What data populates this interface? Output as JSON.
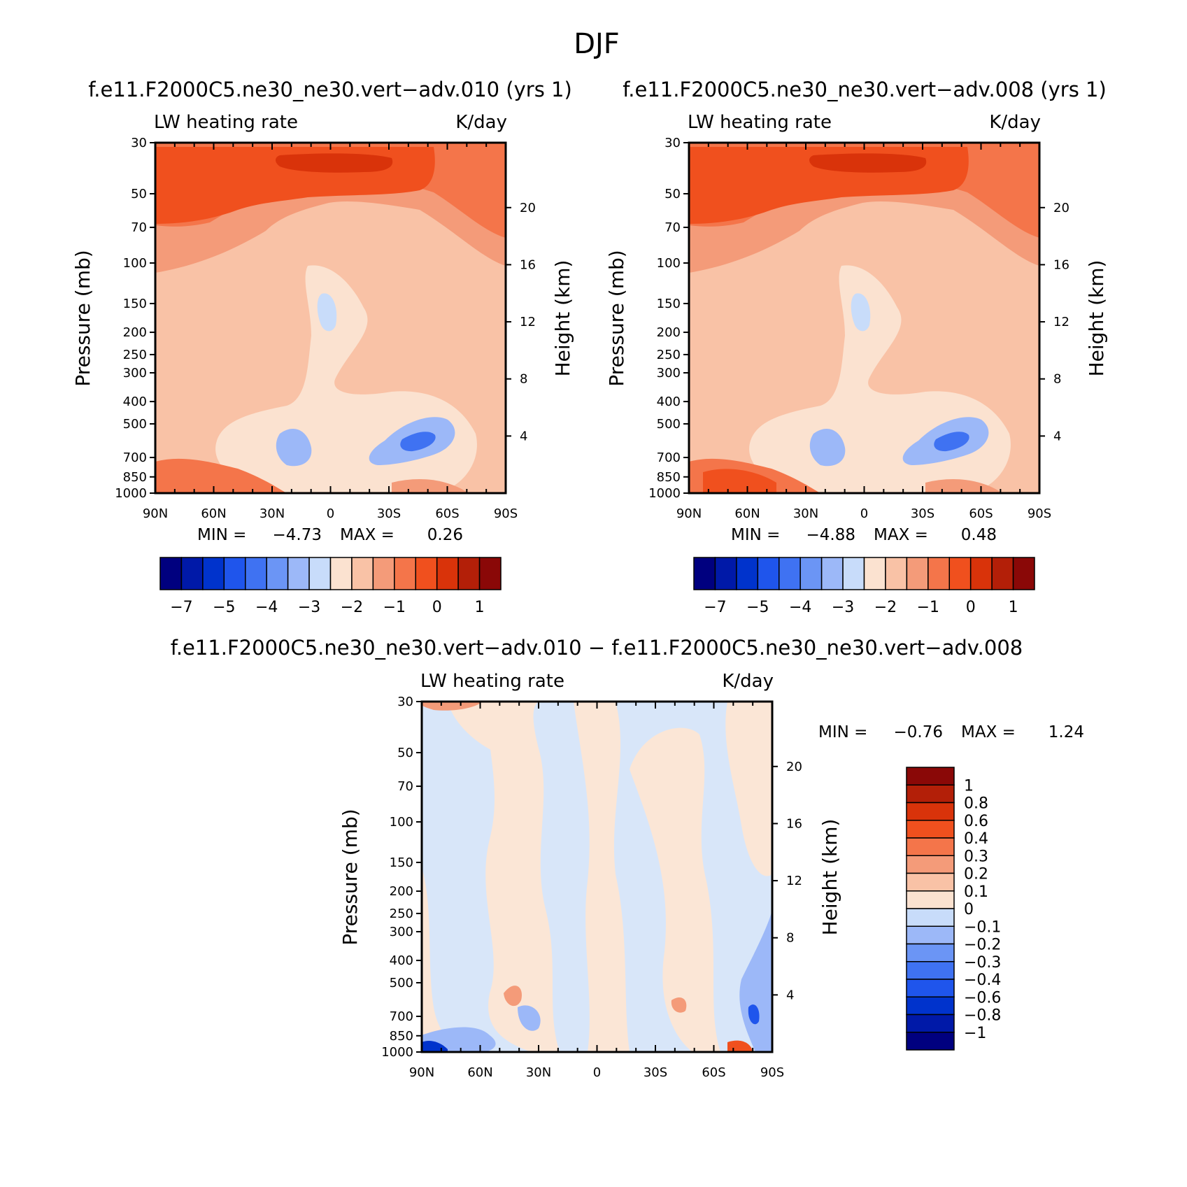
{
  "figure_title": "DJF",
  "chart_data": [
    {
      "id": "panel-left",
      "type": "contour",
      "title": "f.e11.F2000C5.ne30_ne30.vert−adv.010 (yrs 1)",
      "variable": "LW heating rate",
      "units": "K/day",
      "xlabel": "",
      "ylabel": "Pressure (mb)",
      "ylabel_right": "Height (km)",
      "x_tick_labels": [
        "90N",
        "60N",
        "30N",
        "0",
        "30S",
        "60S",
        "90S"
      ],
      "x_tick_values": [
        90,
        60,
        30,
        0,
        -30,
        -60,
        -90
      ],
      "y_tick_labels": [
        "30",
        "50",
        "70",
        "100",
        "150",
        "200",
        "250",
        "300",
        "400",
        "500",
        "700",
        "850",
        "1000"
      ],
      "y_tick_values": [
        30,
        50,
        70,
        100,
        150,
        200,
        250,
        300,
        400,
        500,
        700,
        850,
        1000
      ],
      "height_tick_labels": [
        "20",
        "16",
        "12",
        "8",
        "4"
      ],
      "height_tick_values": [
        20,
        16,
        12,
        8,
        4
      ],
      "ylim": [
        30,
        1000
      ],
      "xlim": [
        90,
        -90
      ],
      "min_label": "MIN =",
      "min_value": "−4.73",
      "max_label": "MAX =",
      "max_value": "0.26",
      "colorbar_orientation": "horizontal",
      "colorbar_labels": [
        "−7",
        "−5",
        "−4",
        "−3",
        "−2",
        "−1",
        "0",
        "1"
      ]
    },
    {
      "id": "panel-right",
      "type": "contour",
      "title": "f.e11.F2000C5.ne30_ne30.vert−adv.008 (yrs 1)",
      "variable": "LW heating rate",
      "units": "K/day",
      "xlabel": "",
      "ylabel": "Pressure (mb)",
      "ylabel_right": "Height (km)",
      "x_tick_labels": [
        "90N",
        "60N",
        "30N",
        "0",
        "30S",
        "60S",
        "90S"
      ],
      "x_tick_values": [
        90,
        60,
        30,
        0,
        -30,
        -60,
        -90
      ],
      "y_tick_labels": [
        "30",
        "50",
        "70",
        "100",
        "150",
        "200",
        "250",
        "300",
        "400",
        "500",
        "700",
        "850",
        "1000"
      ],
      "y_tick_values": [
        30,
        50,
        70,
        100,
        150,
        200,
        250,
        300,
        400,
        500,
        700,
        850,
        1000
      ],
      "height_tick_labels": [
        "20",
        "16",
        "12",
        "8",
        "4"
      ],
      "height_tick_values": [
        20,
        16,
        12,
        8,
        4
      ],
      "ylim": [
        30,
        1000
      ],
      "xlim": [
        90,
        -90
      ],
      "min_label": "MIN =",
      "min_value": "−4.88",
      "max_label": "MAX =",
      "max_value": "0.48",
      "colorbar_orientation": "horizontal",
      "colorbar_labels": [
        "−7",
        "−5",
        "−4",
        "−3",
        "−2",
        "−1",
        "0",
        "1"
      ]
    },
    {
      "id": "panel-diff",
      "type": "contour",
      "title": "f.e11.F2000C5.ne30_ne30.vert−adv.010 − f.e11.F2000C5.ne30_ne30.vert−adv.008",
      "variable": "LW heating rate",
      "units": "K/day",
      "xlabel": "",
      "ylabel": "Pressure (mb)",
      "ylabel_right": "Height (km)",
      "x_tick_labels": [
        "90N",
        "60N",
        "30N",
        "0",
        "30S",
        "60S",
        "90S"
      ],
      "x_tick_values": [
        90,
        60,
        30,
        0,
        -30,
        -60,
        -90
      ],
      "y_tick_labels": [
        "30",
        "50",
        "70",
        "100",
        "150",
        "200",
        "250",
        "300",
        "400",
        "500",
        "700",
        "850",
        "1000"
      ],
      "y_tick_values": [
        30,
        50,
        70,
        100,
        150,
        200,
        250,
        300,
        400,
        500,
        700,
        850,
        1000
      ],
      "height_tick_labels": [
        "20",
        "16",
        "12",
        "8",
        "4"
      ],
      "height_tick_values": [
        20,
        16,
        12,
        8,
        4
      ],
      "ylim": [
        30,
        1000
      ],
      "xlim": [
        90,
        -90
      ],
      "min_label": "MIN =",
      "min_value": "−0.76",
      "max_label": "MAX =",
      "max_value": "1.24",
      "colorbar_orientation": "vertical",
      "colorbar_labels": [
        "1",
        "0.8",
        "0.6",
        "0.4",
        "0.3",
        "0.2",
        "0.1",
        "0",
        "−0.1",
        "−0.2",
        "−0.3",
        "−0.4",
        "−0.6",
        "−0.8",
        "−1"
      ]
    }
  ],
  "colors": {
    "colorbar_16": [
      "#00007f",
      "#0019a8",
      "#0033cc",
      "#1f55ec",
      "#3f72f2",
      "#6b95f5",
      "#9cb8f8",
      "#c8dcfa",
      "#fbe2d0",
      "#f9c2a6",
      "#f49b79",
      "#f4754a",
      "#f0501e",
      "#d9330a",
      "#b31f08",
      "#8a0807"
    ],
    "colorbar_diff": [
      "#8a0807",
      "#b31f08",
      "#d9330a",
      "#f0501e",
      "#f4754a",
      "#f49b79",
      "#f9c2a6",
      "#fbe2d0",
      "#c8dcfa",
      "#9cb8f8",
      "#6b95f5",
      "#3f72f2",
      "#1f55ec",
      "#0033cc",
      "#0019a8",
      "#00007f"
    ]
  }
}
